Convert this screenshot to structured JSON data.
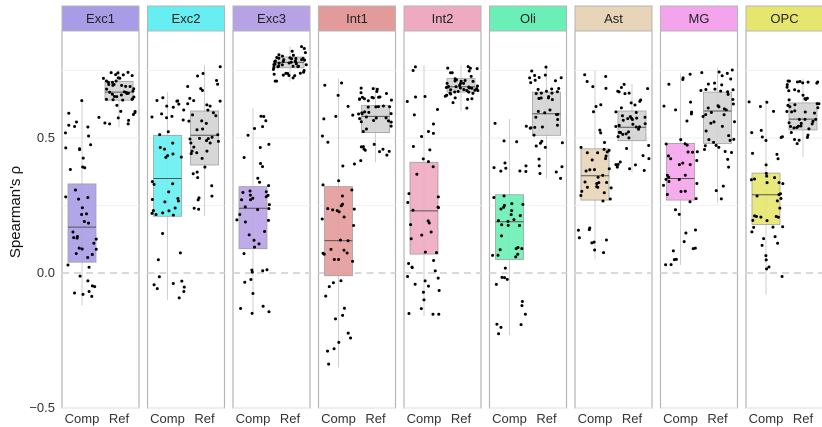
{
  "chart_data": {
    "type": "box",
    "ylabel": "Spearman's ρ",
    "ylim": [
      -0.5,
      0.9
    ],
    "yticks": [
      -0.5,
      0.0,
      0.5
    ],
    "ytick_labels": [
      "−0.5",
      "0.0",
      "0.5"
    ],
    "reference_line": 0.0,
    "categories": [
      "Comp",
      "Ref"
    ],
    "ref_color": "#d3d3d3",
    "panels": [
      {
        "name": "Exc1",
        "color": "#a89ce6",
        "comp": {
          "q1": 0.04,
          "median": 0.17,
          "q3": 0.33,
          "whisker_low": -0.12,
          "whisker_high": 0.64
        },
        "ref": {
          "q1": 0.64,
          "median": 0.67,
          "q3": 0.71,
          "whisker_low": 0.54,
          "whisker_high": 0.75
        }
      },
      {
        "name": "Exc2",
        "color": "#66eef2",
        "comp": {
          "q1": 0.21,
          "median": 0.35,
          "q3": 0.51,
          "whisker_low": -0.1,
          "whisker_high": 0.67
        },
        "ref": {
          "q1": 0.4,
          "median": 0.51,
          "q3": 0.6,
          "whisker_low": 0.21,
          "whisker_high": 0.77
        }
      },
      {
        "name": "Exc3",
        "color": "#b7a2e6",
        "comp": {
          "q1": 0.09,
          "median": 0.24,
          "q3": 0.32,
          "whisker_low": -0.15,
          "whisker_high": 0.61
        },
        "ref": {
          "q1": 0.76,
          "median": 0.78,
          "q3": 0.8,
          "whisker_low": 0.71,
          "whisker_high": 0.84
        }
      },
      {
        "name": "Int1",
        "color": "#e39a9a",
        "comp": {
          "q1": -0.01,
          "median": 0.12,
          "q3": 0.32,
          "whisker_low": -0.35,
          "whisker_high": 0.72
        },
        "ref": {
          "q1": 0.52,
          "median": 0.58,
          "q3": 0.62,
          "whisker_low": 0.41,
          "whisker_high": 0.69
        }
      },
      {
        "name": "Int2",
        "color": "#eeaac0",
        "comp": {
          "q1": 0.07,
          "median": 0.23,
          "q3": 0.41,
          "whisker_low": -0.16,
          "whisker_high": 0.77
        },
        "ref": {
          "q1": 0.67,
          "median": 0.69,
          "q3": 0.72,
          "whisker_low": 0.6,
          "whisker_high": 0.77
        }
      },
      {
        "name": "Oli",
        "color": "#6af0b6",
        "comp": {
          "q1": 0.05,
          "median": 0.19,
          "q3": 0.29,
          "whisker_low": -0.23,
          "whisker_high": 0.57
        },
        "ref": {
          "q1": 0.51,
          "median": 0.59,
          "q3": 0.67,
          "whisker_low": 0.35,
          "whisker_high": 0.77
        }
      },
      {
        "name": "Ast",
        "color": "#e8d4b8",
        "comp": {
          "q1": 0.27,
          "median": 0.36,
          "q3": 0.46,
          "whisker_low": 0.05,
          "whisker_high": 0.75
        },
        "ref": {
          "q1": 0.49,
          "median": 0.54,
          "q3": 0.6,
          "whisker_low": 0.37,
          "whisker_high": 0.7
        }
      },
      {
        "name": "MG",
        "color": "#f4a4ec",
        "comp": {
          "q1": 0.27,
          "median": 0.35,
          "q3": 0.48,
          "whisker_low": 0.03,
          "whisker_high": 0.74
        },
        "ref": {
          "q1": 0.48,
          "median": 0.6,
          "q3": 0.67,
          "whisker_low": 0.26,
          "whisker_high": 0.76
        }
      },
      {
        "name": "OPC",
        "color": "#e6e66e",
        "comp": {
          "q1": 0.18,
          "median": 0.29,
          "q3": 0.37,
          "whisker_low": -0.08,
          "whisker_high": 0.64
        },
        "ref": {
          "q1": 0.53,
          "median": 0.57,
          "q3": 0.63,
          "whisker_low": 0.43,
          "whisker_high": 0.72
        }
      }
    ]
  }
}
